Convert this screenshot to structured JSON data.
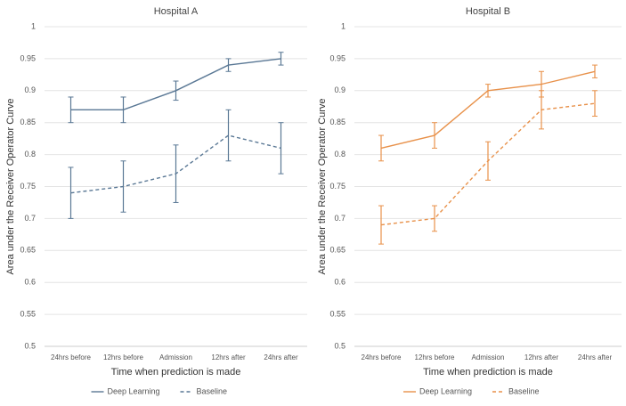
{
  "chart_data": [
    {
      "type": "line",
      "title": "Hospital A",
      "x_label": "Time when prediction is made",
      "y_label": "Area under the Receiver Operator Curve",
      "categories": [
        "24hrs before",
        "12hrs before",
        "Admission",
        "12hrs after",
        "24hrs after"
      ],
      "series": [
        {
          "name": "Deep Learning",
          "color": "#5a7895",
          "dashed": false,
          "values": [
            0.87,
            0.87,
            0.9,
            0.94,
            0.95
          ],
          "errors": [
            0.02,
            0.02,
            0.015,
            0.01,
            0.01
          ]
        },
        {
          "name": "Baseline",
          "color": "#5a7895",
          "dashed": true,
          "values": [
            0.74,
            0.75,
            0.77,
            0.83,
            0.81
          ],
          "errors": [
            0.04,
            0.04,
            0.045,
            0.04,
            0.04
          ]
        }
      ],
      "ylim": [
        0.5,
        1
      ],
      "yticks": [
        0.5,
        0.55,
        0.6,
        0.65,
        0.7,
        0.75,
        0.8,
        0.85,
        0.9,
        0.95,
        1
      ],
      "grid": true
    },
    {
      "type": "line",
      "title": "Hospital B",
      "x_label": "Time when prediction is made",
      "y_label": "Area under the Receiver Operator Curve",
      "categories": [
        "24hrs before",
        "12hrs before",
        "Admission",
        "12hrs after",
        "24hrs after"
      ],
      "series": [
        {
          "name": "Deep Learning",
          "color": "#e8914a",
          "dashed": false,
          "values": [
            0.81,
            0.83,
            0.9,
            0.91,
            0.93
          ],
          "errors": [
            0.02,
            0.02,
            0.01,
            0.02,
            0.01
          ]
        },
        {
          "name": "Baseline",
          "color": "#e8914a",
          "dashed": true,
          "values": [
            0.69,
            0.7,
            0.79,
            0.87,
            0.88
          ],
          "errors": [
            0.03,
            0.02,
            0.03,
            0.03,
            0.02
          ]
        }
      ],
      "ylim": [
        0.5,
        1
      ],
      "yticks": [
        0.5,
        0.55,
        0.6,
        0.65,
        0.7,
        0.75,
        0.8,
        0.85,
        0.9,
        0.95,
        1
      ],
      "grid": true
    }
  ]
}
